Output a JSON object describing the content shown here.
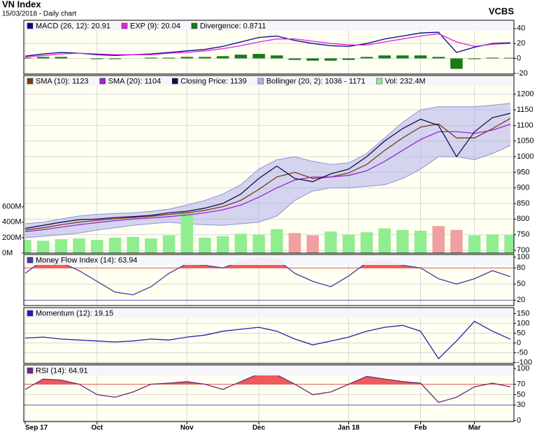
{
  "header": {
    "title": "VN Index",
    "subtitle": "15/03/2018 - Daily chart",
    "source": "VCBS"
  },
  "chart_data": [
    {
      "type": "line",
      "ylim": [
        -21,
        51
      ],
      "yticks": [
        -20,
        0,
        20,
        40
      ],
      "series": [
        {
          "name": "MACD (26, 12): 20.91",
          "color": "#00008b",
          "values": [
            3,
            6,
            8,
            7,
            5,
            4,
            5,
            6,
            8,
            10,
            12,
            16,
            22,
            28,
            30,
            24,
            20,
            17,
            16,
            20,
            26,
            30,
            34,
            35,
            8,
            15,
            20,
            20.91
          ]
        },
        {
          "name": "EXP (9): 20.04",
          "color": "#e020e0",
          "values": [
            2,
            4,
            6,
            7,
            6,
            5,
            5,
            5,
            7,
            8,
            10,
            13,
            17,
            22,
            26,
            26,
            23,
            20,
            18,
            18,
            22,
            26,
            30,
            33,
            22,
            16,
            19,
            20.04
          ]
        },
        {
          "name": "Divergence: 0.8711",
          "type": "bar",
          "color": "#1a7a1a",
          "values": [
            1,
            2,
            2,
            0,
            -1,
            -1,
            0,
            1,
            1,
            2,
            2,
            3,
            5,
            6,
            4,
            -2,
            -3,
            -3,
            -2,
            2,
            4,
            4,
            4,
            2,
            -14,
            -1,
            1,
            0.8711
          ]
        }
      ]
    },
    {
      "type": "line",
      "ylim": [
        691,
        1260
      ],
      "yticks": [
        700,
        750,
        800,
        850,
        900,
        950,
        1000,
        1050,
        1100,
        1150,
        1200
      ],
      "y2lim": [
        0,
        2300
      ],
      "y2ticks": [
        {
          "value": 0,
          "label": "0M"
        },
        {
          "value": 200,
          "label": "200M"
        },
        {
          "value": 400,
          "label": "400M"
        },
        {
          "value": 600,
          "label": "600M"
        }
      ],
      "series": [
        {
          "name": "SMA (10): 1123",
          "color": "#7a3b10",
          "values": [
            765,
            772,
            782,
            790,
            796,
            801,
            805,
            809,
            815,
            820,
            828,
            840,
            860,
            895,
            935,
            950,
            930,
            935,
            948,
            975,
            1020,
            1060,
            1095,
            1105,
            1060,
            1060,
            1090,
            1123
          ]
        },
        {
          "name": "SMA (20): 1104",
          "color": "#a020d0",
          "values": [
            760,
            766,
            774,
            782,
            789,
            795,
            800,
            804,
            808,
            813,
            820,
            830,
            845,
            870,
            900,
            925,
            935,
            935,
            940,
            955,
            985,
            1020,
            1055,
            1080,
            1080,
            1075,
            1085,
            1104
          ]
        },
        {
          "name": "Closing Price: 1139",
          "color": "#10104a",
          "values": [
            770,
            780,
            790,
            798,
            800,
            805,
            808,
            812,
            820,
            825,
            835,
            850,
            880,
            930,
            970,
            930,
            920,
            945,
            960,
            1000,
            1050,
            1090,
            1120,
            1100,
            1000,
            1080,
            1125,
            1139
          ]
        },
        {
          "name": "Bollinger (20, 2): 1036 - 1171",
          "type": "band",
          "color": "#b0b0ec",
          "upper": [
            785,
            790,
            800,
            810,
            815,
            818,
            820,
            825,
            832,
            845,
            860,
            880,
            910,
            960,
            990,
            1000,
            985,
            975,
            980,
            1010,
            1060,
            1110,
            1150,
            1160,
            1160,
            1160,
            1165,
            1171
          ],
          "lower": [
            740,
            745,
            750,
            755,
            765,
            772,
            780,
            785,
            790,
            785,
            782,
            780,
            785,
            790,
            810,
            860,
            890,
            900,
            900,
            905,
            910,
            930,
            960,
            1000,
            1000,
            990,
            1010,
            1036
          ]
        },
        {
          "name": "Vol: 232.4M",
          "type": "bar",
          "axis": "y2",
          "color": "#90ee90",
          "down_color": "#f0a0a0",
          "values": [
            170,
            160,
            180,
            190,
            170,
            200,
            210,
            190,
            230,
            530,
            200,
            220,
            250,
            240,
            310,
            260,
            230,
            280,
            240,
            270,
            320,
            300,
            290,
            350,
            300,
            230,
            240,
            232.4
          ]
        }
      ]
    },
    {
      "type": "line",
      "ylim": [
        10,
        105
      ],
      "yticks": [
        20,
        50,
        80,
        100
      ],
      "thresholds": [
        {
          "value": 80,
          "color": "#e06060",
          "fill": "#f04848"
        },
        {
          "value": 20,
          "color": "#6060d0"
        }
      ],
      "series": [
        {
          "name": "Money Flow Index (14): 63.94",
          "color": "#4a3a9a",
          "values": [
            70,
            95,
            90,
            75,
            55,
            35,
            30,
            45,
            70,
            88,
            85,
            80,
            92,
            98,
            96,
            70,
            55,
            45,
            65,
            90,
            95,
            85,
            80,
            60,
            50,
            60,
            75,
            63.94
          ]
        }
      ]
    },
    {
      "type": "line",
      "ylim": [
        -105,
        180
      ],
      "yticks": [
        -100,
        -50,
        0,
        50,
        100,
        150
      ],
      "series": [
        {
          "name": "Momentum (12): 19.15",
          "color": "#2020b0",
          "values": [
            25,
            30,
            20,
            15,
            10,
            5,
            10,
            20,
            15,
            30,
            40,
            60,
            70,
            80,
            60,
            20,
            -10,
            10,
            30,
            60,
            80,
            90,
            60,
            -80,
            10,
            110,
            60,
            19.15
          ]
        }
      ]
    },
    {
      "type": "line",
      "ylim": [
        -2,
        107
      ],
      "yticks": [
        0,
        30,
        50,
        70,
        100
      ],
      "thresholds": [
        {
          "value": 70,
          "color": "#e06060",
          "fill": "#f04848"
        },
        {
          "value": 30,
          "color": "#6060d0"
        }
      ],
      "categories": [
        "Sep 17",
        null,
        null,
        null,
        "Oct",
        null,
        null,
        null,
        null,
        "Nov",
        null,
        null,
        null,
        "Dec",
        null,
        null,
        null,
        null,
        "Jan 18",
        null,
        null,
        null,
        "Feb",
        null,
        null,
        "Mar",
        null,
        null
      ],
      "series": [
        {
          "name": "RSI (14): 64.91",
          "color": "#6a2a7a",
          "values": [
            60,
            80,
            78,
            70,
            50,
            45,
            55,
            70,
            72,
            75,
            70,
            60,
            75,
            90,
            88,
            70,
            50,
            55,
            70,
            85,
            80,
            75,
            72,
            35,
            45,
            65,
            72,
            64.91
          ]
        }
      ]
    }
  ]
}
